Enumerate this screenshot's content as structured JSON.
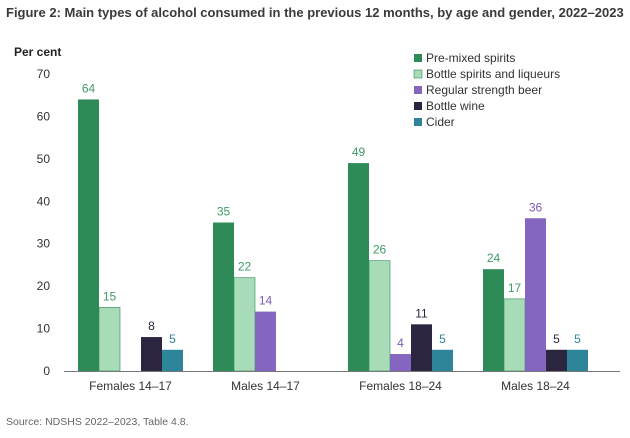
{
  "chart_data": {
    "type": "bar",
    "title": "Figure 2: Main types of alcohol consumed in the previous 12 months, by age and gender, 2022–2023",
    "ylabel": "Per cent",
    "xlabel": "",
    "ylim": [
      0,
      70
    ],
    "yticks": [
      0,
      10,
      20,
      30,
      40,
      50,
      60,
      70
    ],
    "grid": false,
    "legend_position": "top-right",
    "categories": [
      "Females 14–17",
      "Males 14–17",
      "Females 18–24",
      "Males 18–24"
    ],
    "series": [
      {
        "name": "Pre-mixed spirits",
        "color": "#2e8b57",
        "label_color": "#3f9a64",
        "values": [
          64,
          35,
          49,
          24
        ]
      },
      {
        "name": "Bottle spirits and liqueurs",
        "color": "#a8dcb9",
        "label_color": "#3f9a64",
        "values": [
          15,
          22,
          26,
          17
        ]
      },
      {
        "name": "Regular strength beer",
        "color": "#8466c0",
        "label_color": "#7a5cb8",
        "values": [
          null,
          14,
          4,
          36
        ]
      },
      {
        "name": "Bottle wine",
        "color": "#2b2540",
        "label_color": "#2b2540",
        "values": [
          8,
          null,
          11,
          5
        ]
      },
      {
        "name": "Cider",
        "color": "#2e8499",
        "label_color": "#2e8499",
        "values": [
          5,
          null,
          5,
          5
        ]
      }
    ],
    "source": "Source: NDSHS 2022–2023, Table 4.8."
  }
}
